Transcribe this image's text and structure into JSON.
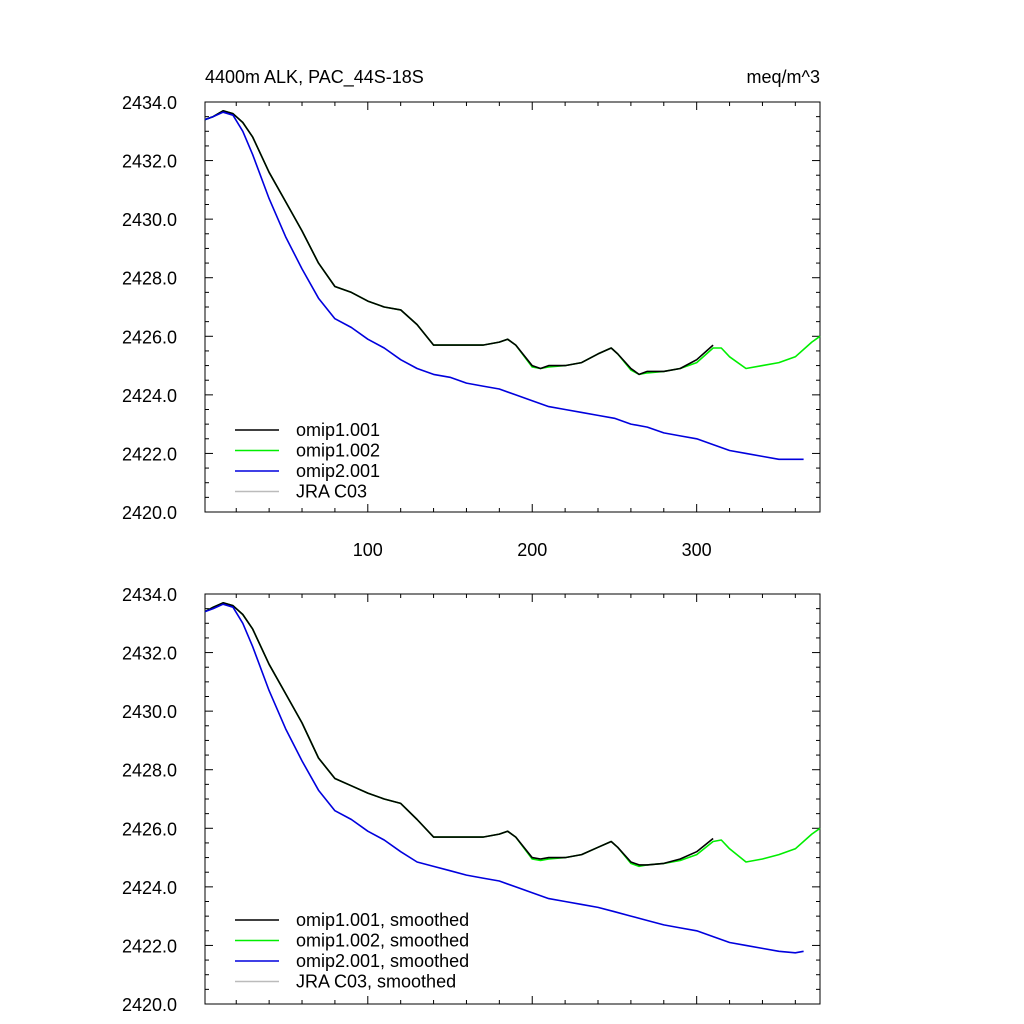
{
  "colors": {
    "background": "#ffffff",
    "axis": "#000000",
    "omip1_001": "#000000",
    "omip1_002": "#00ee00",
    "omip2_001": "#0000dd",
    "jra_c03": "#bbbbbb"
  },
  "chart_data": [
    {
      "type": "line",
      "title": "4400m ALK, PAC_44S-18S",
      "units": "meq/m^3",
      "xlim": [
        1,
        375
      ],
      "ylim": [
        2420,
        2434
      ],
      "grid": false,
      "legend_placement": "bottom-left",
      "xticks": [
        "100",
        "200",
        "300"
      ],
      "yticks": [
        "2420.0",
        "2422.0",
        "2424.0",
        "2426.0",
        "2428.0",
        "2430.0",
        "2432.0",
        "2434.0"
      ],
      "series": [
        {
          "name": "omip1.001",
          "color": "#000000",
          "x": [
            1,
            6,
            12,
            18,
            24,
            30,
            40,
            50,
            60,
            70,
            80,
            90,
            100,
            110,
            120,
            130,
            140,
            150,
            160,
            170,
            180,
            185,
            190,
            200,
            205,
            210,
            220,
            230,
            240,
            248,
            252,
            260,
            265,
            270,
            280,
            290,
            300,
            310
          ],
          "y": [
            2433.4,
            2433.5,
            2433.7,
            2433.6,
            2433.3,
            2432.8,
            2431.6,
            2430.6,
            2429.6,
            2428.5,
            2427.7,
            2427.5,
            2427.2,
            2427.0,
            2426.9,
            2426.4,
            2425.7,
            2425.7,
            2425.7,
            2425.7,
            2425.8,
            2425.9,
            2425.7,
            2425.0,
            2424.9,
            2425.0,
            2425.0,
            2425.1,
            2425.4,
            2425.6,
            2425.4,
            2424.9,
            2424.7,
            2424.8,
            2424.8,
            2424.9,
            2425.2,
            2425.7
          ]
        },
        {
          "name": "omip1.002",
          "color": "#00ee00",
          "x": [
            1,
            6,
            12,
            18,
            24,
            30,
            40,
            50,
            60,
            70,
            80,
            90,
            100,
            110,
            120,
            130,
            140,
            150,
            160,
            170,
            180,
            185,
            190,
            200,
            205,
            210,
            220,
            230,
            240,
            248,
            252,
            260,
            265,
            270,
            280,
            290,
            300,
            310,
            315,
            320,
            330,
            340,
            350,
            360,
            370,
            375
          ],
          "y": [
            2433.4,
            2433.5,
            2433.7,
            2433.6,
            2433.3,
            2432.8,
            2431.6,
            2430.6,
            2429.6,
            2428.5,
            2427.7,
            2427.5,
            2427.2,
            2427.0,
            2426.9,
            2426.4,
            2425.7,
            2425.7,
            2425.7,
            2425.7,
            2425.8,
            2425.9,
            2425.7,
            2424.95,
            2424.9,
            2424.95,
            2425.0,
            2425.1,
            2425.4,
            2425.6,
            2425.4,
            2424.85,
            2424.7,
            2424.75,
            2424.8,
            2424.9,
            2425.1,
            2425.6,
            2425.6,
            2425.3,
            2424.9,
            2425.0,
            2425.1,
            2425.3,
            2425.8,
            2426.0
          ]
        },
        {
          "name": "omip2.001",
          "color": "#0000dd",
          "x": [
            1,
            6,
            12,
            18,
            24,
            30,
            40,
            50,
            60,
            70,
            80,
            90,
            100,
            110,
            120,
            130,
            140,
            150,
            160,
            170,
            180,
            190,
            200,
            210,
            220,
            230,
            240,
            250,
            260,
            270,
            280,
            290,
            300,
            310,
            320,
            330,
            340,
            350,
            360,
            365
          ],
          "y": [
            2433.4,
            2433.5,
            2433.65,
            2433.55,
            2433.0,
            2432.2,
            2430.7,
            2429.4,
            2428.3,
            2427.3,
            2426.6,
            2426.3,
            2425.9,
            2425.6,
            2425.2,
            2424.9,
            2424.7,
            2424.6,
            2424.4,
            2424.3,
            2424.2,
            2424.0,
            2423.8,
            2423.6,
            2423.5,
            2423.4,
            2423.3,
            2423.2,
            2423.0,
            2422.9,
            2422.7,
            2422.6,
            2422.5,
            2422.3,
            2422.1,
            2422.0,
            2421.9,
            2421.8,
            2421.8,
            2421.8
          ]
        },
        {
          "name": "JRA C03",
          "color": "#bbbbbb",
          "x": [],
          "y": []
        }
      ]
    },
    {
      "type": "line",
      "xlim": [
        1,
        375
      ],
      "ylim": [
        2420,
        2434
      ],
      "grid": false,
      "legend_placement": "bottom-left",
      "xticks": [],
      "yticks": [
        "2420.0",
        "2422.0",
        "2424.0",
        "2426.0",
        "2428.0",
        "2430.0",
        "2432.0",
        "2434.0"
      ],
      "series": [
        {
          "name": "omip1.001, smoothed",
          "color": "#000000",
          "x": [
            1,
            6,
            12,
            18,
            24,
            30,
            40,
            50,
            60,
            70,
            80,
            90,
            100,
            110,
            120,
            130,
            140,
            150,
            160,
            170,
            180,
            185,
            190,
            200,
            205,
            210,
            220,
            230,
            240,
            248,
            252,
            260,
            265,
            270,
            280,
            290,
            300,
            310
          ],
          "y": [
            2433.4,
            2433.55,
            2433.7,
            2433.6,
            2433.3,
            2432.8,
            2431.6,
            2430.6,
            2429.6,
            2428.4,
            2427.7,
            2427.45,
            2427.2,
            2427.0,
            2426.85,
            2426.3,
            2425.7,
            2425.7,
            2425.7,
            2425.7,
            2425.8,
            2425.9,
            2425.7,
            2425.0,
            2424.95,
            2425.0,
            2425.0,
            2425.1,
            2425.35,
            2425.55,
            2425.35,
            2424.85,
            2424.75,
            2424.75,
            2424.8,
            2424.95,
            2425.2,
            2425.65
          ]
        },
        {
          "name": "omip1.002, smoothed",
          "color": "#00ee00",
          "x": [
            1,
            6,
            12,
            18,
            24,
            30,
            40,
            50,
            60,
            70,
            80,
            90,
            100,
            110,
            120,
            130,
            140,
            150,
            160,
            170,
            180,
            185,
            190,
            200,
            205,
            210,
            220,
            230,
            240,
            248,
            252,
            260,
            265,
            270,
            280,
            290,
            300,
            310,
            315,
            320,
            330,
            340,
            350,
            360,
            370,
            375
          ],
          "y": [
            2433.4,
            2433.55,
            2433.7,
            2433.6,
            2433.3,
            2432.8,
            2431.6,
            2430.6,
            2429.6,
            2428.4,
            2427.7,
            2427.45,
            2427.2,
            2427.0,
            2426.85,
            2426.3,
            2425.7,
            2425.7,
            2425.7,
            2425.7,
            2425.8,
            2425.9,
            2425.7,
            2424.95,
            2424.9,
            2424.95,
            2425.0,
            2425.1,
            2425.35,
            2425.55,
            2425.35,
            2424.8,
            2424.7,
            2424.75,
            2424.8,
            2424.9,
            2425.1,
            2425.55,
            2425.6,
            2425.3,
            2424.85,
            2424.95,
            2425.1,
            2425.3,
            2425.8,
            2426.0
          ]
        },
        {
          "name": "omip2.001, smoothed",
          "color": "#0000dd",
          "x": [
            1,
            6,
            12,
            18,
            24,
            30,
            40,
            50,
            60,
            70,
            80,
            90,
            100,
            110,
            120,
            130,
            140,
            150,
            160,
            170,
            180,
            190,
            200,
            210,
            220,
            230,
            240,
            250,
            260,
            270,
            280,
            290,
            300,
            310,
            320,
            330,
            340,
            350,
            360,
            365
          ],
          "y": [
            2433.4,
            2433.5,
            2433.65,
            2433.55,
            2433.0,
            2432.2,
            2430.7,
            2429.4,
            2428.3,
            2427.3,
            2426.6,
            2426.3,
            2425.9,
            2425.6,
            2425.2,
            2424.85,
            2424.7,
            2424.55,
            2424.4,
            2424.3,
            2424.2,
            2424.0,
            2423.8,
            2423.6,
            2423.5,
            2423.4,
            2423.3,
            2423.15,
            2423.0,
            2422.85,
            2422.7,
            2422.6,
            2422.5,
            2422.3,
            2422.1,
            2422.0,
            2421.9,
            2421.8,
            2421.75,
            2421.8
          ]
        },
        {
          "name": "JRA C03, smoothed",
          "color": "#bbbbbb",
          "x": [],
          "y": []
        }
      ]
    }
  ]
}
